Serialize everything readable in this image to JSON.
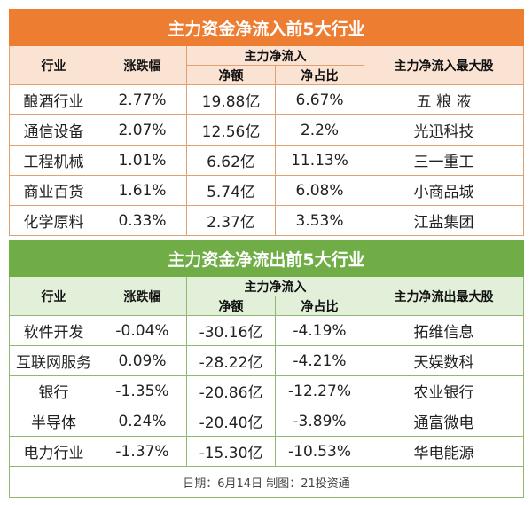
{
  "inflow": {
    "title": "主力资金净流入前5大行业",
    "headers": {
      "industry": "行业",
      "change": "涨跌幅",
      "group": "主力净流入",
      "amount": "净额",
      "ratio": "净占比",
      "top_stock": "主力净流入最大股"
    },
    "rows": [
      {
        "industry": "酿酒行业",
        "change": "2.77%",
        "amount": "19.88亿",
        "ratio": "6.67%",
        "top_stock": "五 粮 液"
      },
      {
        "industry": "通信设备",
        "change": "2.07%",
        "amount": "12.56亿",
        "ratio": "2.2%",
        "top_stock": "光迅科技"
      },
      {
        "industry": "工程机械",
        "change": "1.01%",
        "amount": "6.62亿",
        "ratio": "11.13%",
        "top_stock": "三一重工"
      },
      {
        "industry": "商业百货",
        "change": "1.61%",
        "amount": "5.74亿",
        "ratio": "6.08%",
        "top_stock": "小商品城"
      },
      {
        "industry": "化学原料",
        "change": "0.33%",
        "amount": "2.37亿",
        "ratio": "3.53%",
        "top_stock": "江盐集团"
      }
    ]
  },
  "outflow": {
    "title": "主力资金净流出前5大行业",
    "headers": {
      "industry": "行业",
      "change": "涨跌幅",
      "group": "主力净流入",
      "amount": "净额",
      "ratio": "净占比",
      "top_stock": "主力净流出最大股"
    },
    "rows": [
      {
        "industry": "软件开发",
        "change": "-0.04%",
        "amount": "-30.16亿",
        "ratio": "-4.19%",
        "top_stock": "拓维信息"
      },
      {
        "industry": "互联网服务",
        "change": "0.09%",
        "amount": "-28.22亿",
        "ratio": "-4.21%",
        "top_stock": "天娱数科"
      },
      {
        "industry": "银行",
        "change": "-1.35%",
        "amount": "-20.86亿",
        "ratio": "-12.27%",
        "top_stock": "农业银行"
      },
      {
        "industry": "半导体",
        "change": "0.24%",
        "amount": "-20.40亿",
        "ratio": "-3.89%",
        "top_stock": "通富微电"
      },
      {
        "industry": "电力行业",
        "change": "-1.37%",
        "amount": "-15.30亿",
        "ratio": "-10.53%",
        "top_stock": "华电能源"
      }
    ],
    "footer": "日期：6月14日 制图：21投资通"
  },
  "colors": {
    "inflow_accent": "#ed7d31",
    "inflow_header_bg": "#fbe3d3",
    "outflow_accent": "#70ad47",
    "outflow_header_bg": "#e2efd9"
  }
}
